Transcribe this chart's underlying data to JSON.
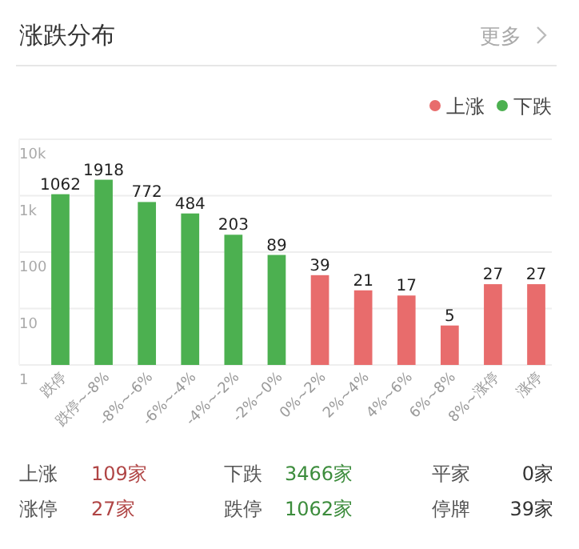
{
  "chart_data": {
    "type": "bar",
    "title": "涨跌分布",
    "categories": [
      "跌停",
      "跌停~-8%",
      "-8%~-6%",
      "-6%~-4%",
      "-4%~-2%",
      "-2%~0%",
      "0%~2%",
      "2%~4%",
      "4%~6%",
      "6%~8%",
      "8%~涨停",
      "涨停"
    ],
    "series": [
      {
        "name": "上涨",
        "color": "#e86c6c",
        "values": [
          null,
          null,
          null,
          null,
          null,
          null,
          39,
          21,
          17,
          5,
          27,
          27
        ]
      },
      {
        "name": "下跌",
        "color": "#4cb050",
        "values": [
          1062,
          1918,
          772,
          484,
          203,
          89,
          null,
          null,
          null,
          null,
          null,
          null
        ]
      }
    ],
    "ylim": [
      1,
      10000
    ],
    "yticks": [
      1,
      10,
      100,
      {
        "value": 1000,
        "label": "1k"
      },
      {
        "value": 10000,
        "label": "10k"
      }
    ],
    "log": true,
    "grid": "y",
    "legend": "top right",
    "data_labels": true,
    "annotations": [
      "更多",
      "上涨 109家",
      "下跌 3466家",
      "平家 0家",
      "涨停 27家",
      "跌停 1062家",
      "停牌 39家"
    ]
  }
}
